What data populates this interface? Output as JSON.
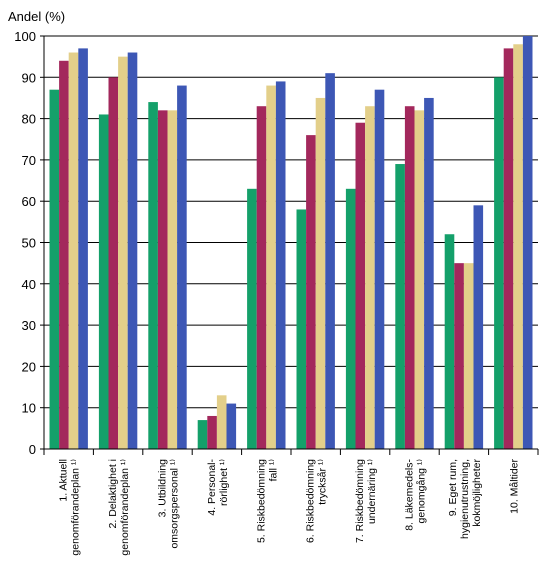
{
  "chart_data": {
    "type": "bar",
    "ylabel": "Andel (%)",
    "ylim": [
      0,
      100
    ],
    "yticks": [
      0,
      10,
      20,
      30,
      40,
      50,
      60,
      70,
      80,
      90,
      100
    ],
    "grid": true,
    "legend": "none",
    "categories": [
      [
        "1. Aktuell",
        "genomförandeplan ¹⁾"
      ],
      [
        "2. Delaktighet i",
        "genomförandeplan ¹⁾"
      ],
      [
        "3. Utbildning",
        "omsorgspersonal ¹⁾"
      ],
      [
        "4. Personal-",
        "rörlighet ¹⁾"
      ],
      [
        "5. Riskbedömning",
        "fall ¹⁾"
      ],
      [
        "6. Riskbedömning",
        "trycksår ¹⁾"
      ],
      [
        "7. Riskbedömning",
        "undernäring ¹⁾"
      ],
      [
        "8. Läkemedels-",
        "genomgång ¹⁾"
      ],
      [
        "9. Eget rum,",
        "hygienutrustning,",
        "kokmöjligheter"
      ],
      [
        "10. Måltider"
      ]
    ],
    "series": [
      {
        "color": "#14a06a",
        "values": [
          87,
          81,
          84,
          7,
          63,
          58,
          63,
          69,
          52,
          90
        ]
      },
      {
        "color": "#a3285c",
        "values": [
          94,
          90,
          82,
          8,
          83,
          76,
          79,
          83,
          45,
          97
        ]
      },
      {
        "color": "#e3cf8a",
        "values": [
          96,
          95,
          82,
          13,
          88,
          85,
          83,
          82,
          45,
          98
        ]
      },
      {
        "color": "#3d57b5",
        "values": [
          97,
          96,
          88,
          11,
          89,
          91,
          87,
          85,
          59,
          100
        ]
      }
    ]
  }
}
